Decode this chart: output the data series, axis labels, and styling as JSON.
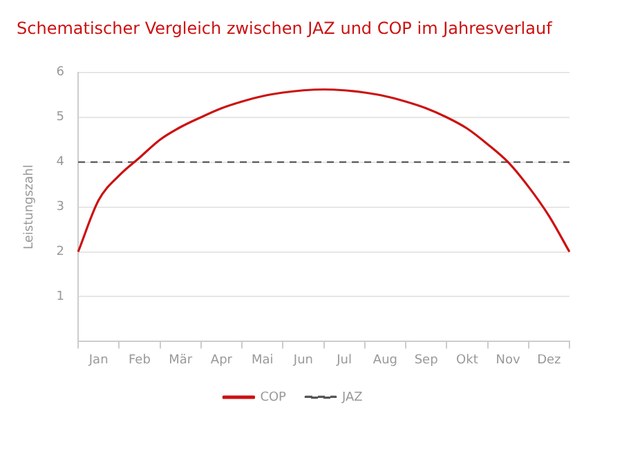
{
  "chart_data": {
    "type": "line",
    "title": "Schematischer Vergleich zwischen JAZ und COP im Jahresverlauf",
    "ylabel": "Leistungszahl",
    "categories": [
      null,
      "Jan",
      null,
      "Feb",
      null,
      "Mär",
      null,
      "Apr",
      null,
      "Mai",
      null,
      "Jun",
      null,
      "Jul",
      null,
      "Aug",
      null,
      "Sep",
      null,
      "Okt",
      null,
      "Nov",
      null,
      "Dez",
      null
    ],
    "ylim": [
      0,
      6
    ],
    "yticks": [
      1,
      2,
      3,
      4,
      5,
      6
    ],
    "grid": "y",
    "legend": "bottom",
    "marker": "none",
    "series": [
      {
        "name": "COP",
        "color": "#cc1111",
        "line_style": "solid",
        "values": [
          2,
          3.15,
          3.7,
          4.1,
          4.5,
          4.78,
          5.0,
          5.2,
          5.35,
          5.47,
          5.55,
          5.6,
          5.62,
          5.6,
          5.55,
          5.47,
          5.35,
          5.2,
          5.0,
          4.75,
          4.4,
          4.0,
          3.45,
          2.8,
          2
        ]
      },
      {
        "name": "JAZ",
        "color": "#555555",
        "line_style": "dashed",
        "values": [
          4,
          4,
          4,
          4,
          4,
          4,
          4,
          4,
          4,
          4,
          4,
          4,
          4,
          4,
          4,
          4,
          4,
          4,
          4,
          4,
          4,
          4,
          4,
          4,
          4
        ]
      }
    ]
  }
}
